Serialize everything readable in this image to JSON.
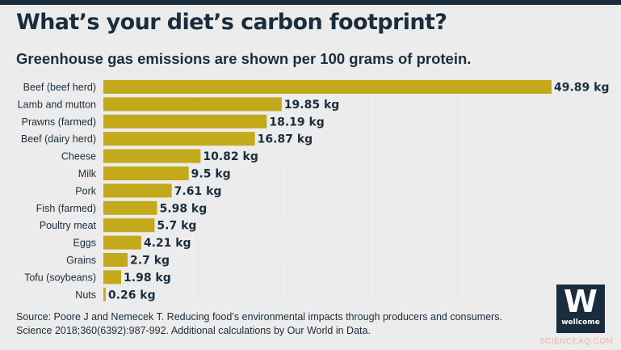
{
  "title": "What’s your diet’s carbon footprint?",
  "subtitle": "Greenhouse gas emissions are shown per 100 grams of protein.",
  "source": "Source: Poore J and Nemecek T. Reducing food’s environmental impacts through producers and consumers. Science 2018;360(6392):987-992. Additional calculations by Our World in Data.",
  "logo": {
    "text": "wellcome",
    "mark": "W"
  },
  "watermark": "SCIENCEAQ.COM",
  "colors": {
    "bar": "#c2aa1b",
    "text": "#1b2d3c",
    "background": "#ececec",
    "gridline": "#ffffff"
  },
  "chart_data": {
    "type": "bar",
    "orientation": "horizontal",
    "categories": [
      "Beef (beef herd)",
      "Lamb and mutton",
      "Prawns (farmed)",
      "Beef (dairy herd)",
      "Cheese",
      "Milk",
      "Pork",
      "Fish (farmed)",
      "Poultry meat",
      "Eggs",
      "Grains",
      "Tofu (soybeans)",
      "Nuts"
    ],
    "values": [
      49.89,
      19.85,
      18.19,
      16.87,
      10.82,
      9.5,
      7.61,
      5.98,
      5.7,
      4.21,
      2.7,
      1.98,
      0.26
    ],
    "value_labels": [
      "49.89 kg",
      "19.85 kg",
      "18.19 kg",
      "16.87 kg",
      "10.82 kg",
      "9.5 kg",
      "7.61 kg",
      "5.98 kg",
      "5.7 kg",
      "4.21 kg",
      "2.7 kg",
      "1.98 kg",
      "0.26 kg"
    ],
    "unit": "kg",
    "xlim": [
      0,
      49.89
    ],
    "grid": true,
    "gridlines": [
      10,
      20,
      30,
      40
    ]
  }
}
